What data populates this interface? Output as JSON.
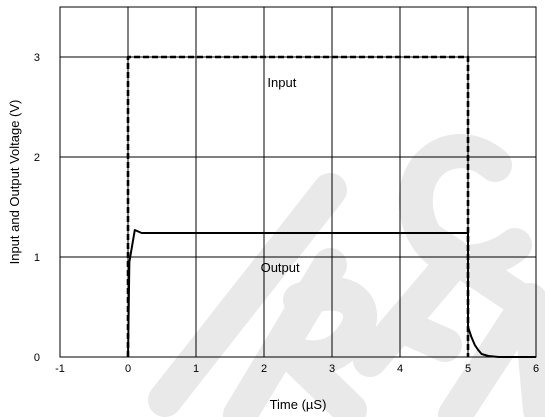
{
  "chart_data": {
    "type": "line",
    "xlabel": "Time (µS)",
    "ylabel": "Input and Output Voltage (V)",
    "xlim": [
      -1,
      6
    ],
    "ylim": [
      0,
      3.5
    ],
    "xticks": [
      "-1",
      "0",
      "1",
      "2",
      "3",
      "4",
      "5",
      "6"
    ],
    "yticks": [
      "0",
      "1",
      "2",
      "3"
    ],
    "grid": true,
    "series": [
      {
        "name": "Input",
        "style": "dashed",
        "x": [
          0,
          0,
          5,
          5
        ],
        "y": [
          0,
          3,
          3,
          0
        ]
      },
      {
        "name": "Output",
        "style": "solid",
        "x": [
          0,
          0.02,
          0.1,
          0.2,
          5,
          5,
          5.05,
          5.1,
          5.15,
          5.2,
          5.3,
          5.45,
          6
        ],
        "y": [
          0,
          0.95,
          1.27,
          1.24,
          1.24,
          0.3,
          0.2,
          0.12,
          0.07,
          0.03,
          0.01,
          0,
          0
        ]
      }
    ],
    "annotations": [
      {
        "text": "Input",
        "x": 2.05,
        "y": 2.7
      },
      {
        "text": "Output",
        "x": 1.95,
        "y": 0.85
      }
    ],
    "colors": {
      "line": "#000000",
      "grid": "#000000",
      "watermark": "#e9e9e9"
    }
  }
}
